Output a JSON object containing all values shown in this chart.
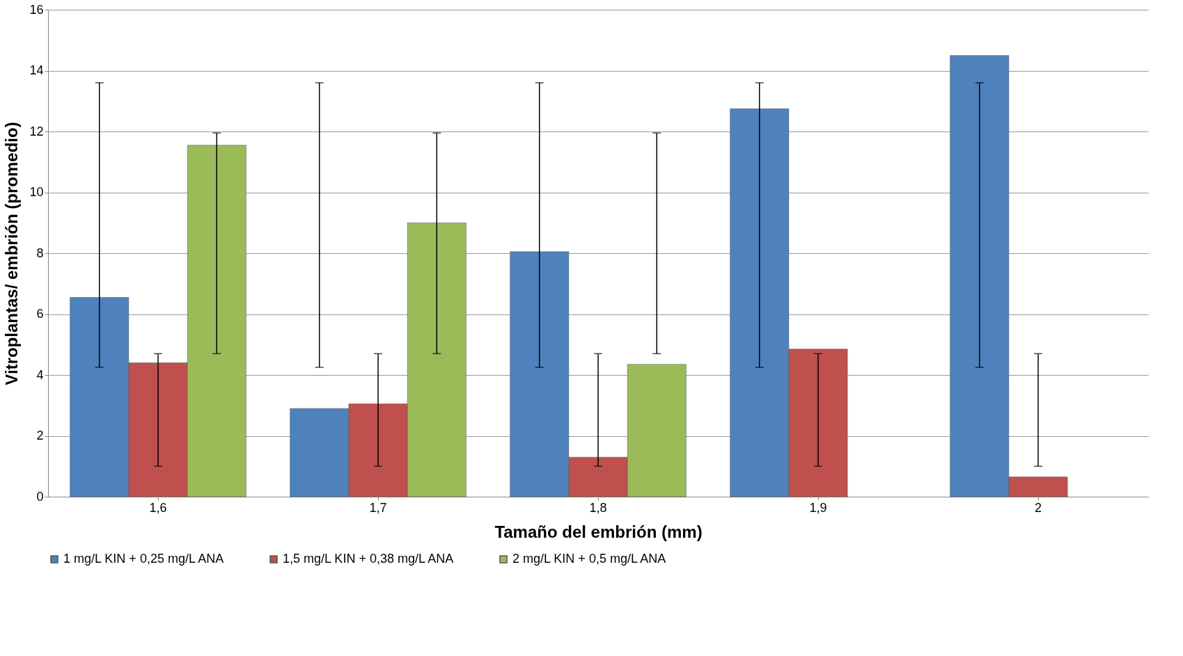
{
  "chart_data": {
    "type": "bar",
    "xlabel": "Tamaño del embrión (mm)",
    "ylabel": "Vitroplantas/ embrión (promedio)",
    "categories": [
      "1,6",
      "1,7",
      "1,8",
      "1,9",
      "2"
    ],
    "series": [
      {
        "name": "1 mg/L KIN + 0,25 mg/L ANA",
        "color": "#4f81bd",
        "values": [
          6.55,
          2.9,
          8.05,
          12.75,
          14.5
        ],
        "errors": [
          [
            4.25,
            13.6
          ],
          [
            4.25,
            13.6
          ],
          [
            4.25,
            13.6
          ],
          [
            4.25,
            13.6
          ],
          [
            4.25,
            13.6
          ]
        ]
      },
      {
        "name": "1,5 mg/L KIN + 0,38 mg/L ANA",
        "color": "#c0504d",
        "values": [
          4.4,
          3.05,
          1.3,
          4.85,
          0.65
        ],
        "errors": [
          [
            1.0,
            4.7
          ],
          [
            1.0,
            4.7
          ],
          [
            1.0,
            4.7
          ],
          [
            1.0,
            4.7
          ],
          [
            1.0,
            4.7
          ]
        ]
      },
      {
        "name": "2 mg/L KIN + 0,5 mg/L ANA",
        "color": "#9bbb59",
        "values": [
          11.55,
          9.0,
          4.35,
          null,
          null
        ],
        "errors": [
          [
            4.7,
            11.95
          ],
          [
            4.7,
            11.95
          ],
          [
            4.7,
            11.95
          ],
          null,
          null
        ]
      }
    ],
    "ylim": [
      0,
      16
    ],
    "yticks": [
      0,
      2,
      4,
      6,
      8,
      10,
      12,
      14,
      16
    ],
    "grid": "y",
    "legend": "bottom"
  }
}
